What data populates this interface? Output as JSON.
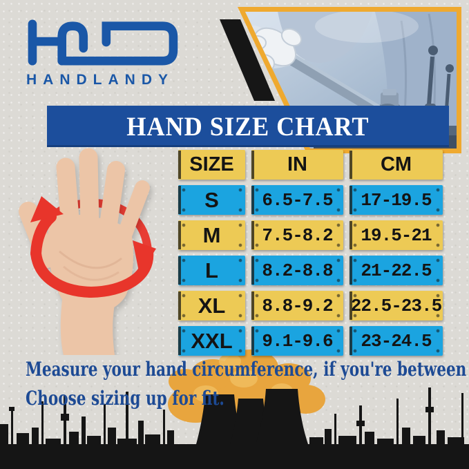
{
  "brand": {
    "name": "HANDLANDY",
    "monogram": "hld-monogram-icon"
  },
  "banner": {
    "title": "HAND SIZE CHART"
  },
  "chart_data": {
    "type": "table",
    "title": "HAND SIZE CHART",
    "columns": [
      "SIZE",
      "IN",
      "CM"
    ],
    "rows": [
      [
        "S",
        "6.5-7.5",
        "17-19.5"
      ],
      [
        "M",
        "7.5-8.2",
        "19.5-21"
      ],
      [
        "L",
        "8.2-8.8",
        "21-22.5"
      ],
      [
        "XL",
        "8.8-9.2",
        "22.5-23.5"
      ],
      [
        "XXL",
        "9.1-9.6",
        "23-24.5"
      ]
    ]
  },
  "note": {
    "line1": "Measure your hand circumference, if you're between size,",
    "line2": "Choose sizing up for fit."
  },
  "illustrations": {
    "hand": "open-hand-with-circular-measure-arrow",
    "photo": "gloved-hand-operating-machine-photo",
    "smoke": "orange-factory-smoke-clouds",
    "skyline": "black-factory-skyline-silhouette"
  },
  "colors": {
    "logo_blue": "#1a57a7",
    "banner_blue": "#1c4e9c",
    "cell_yellow": "#edca55",
    "cell_blue": "#1ba4e0",
    "frame_orange": "#efa92f",
    "arrow_red": "#e8352b",
    "note_blue": "#1d4a94",
    "silhouette_black": "#151515",
    "smoke_orange": "#e8a53e"
  }
}
